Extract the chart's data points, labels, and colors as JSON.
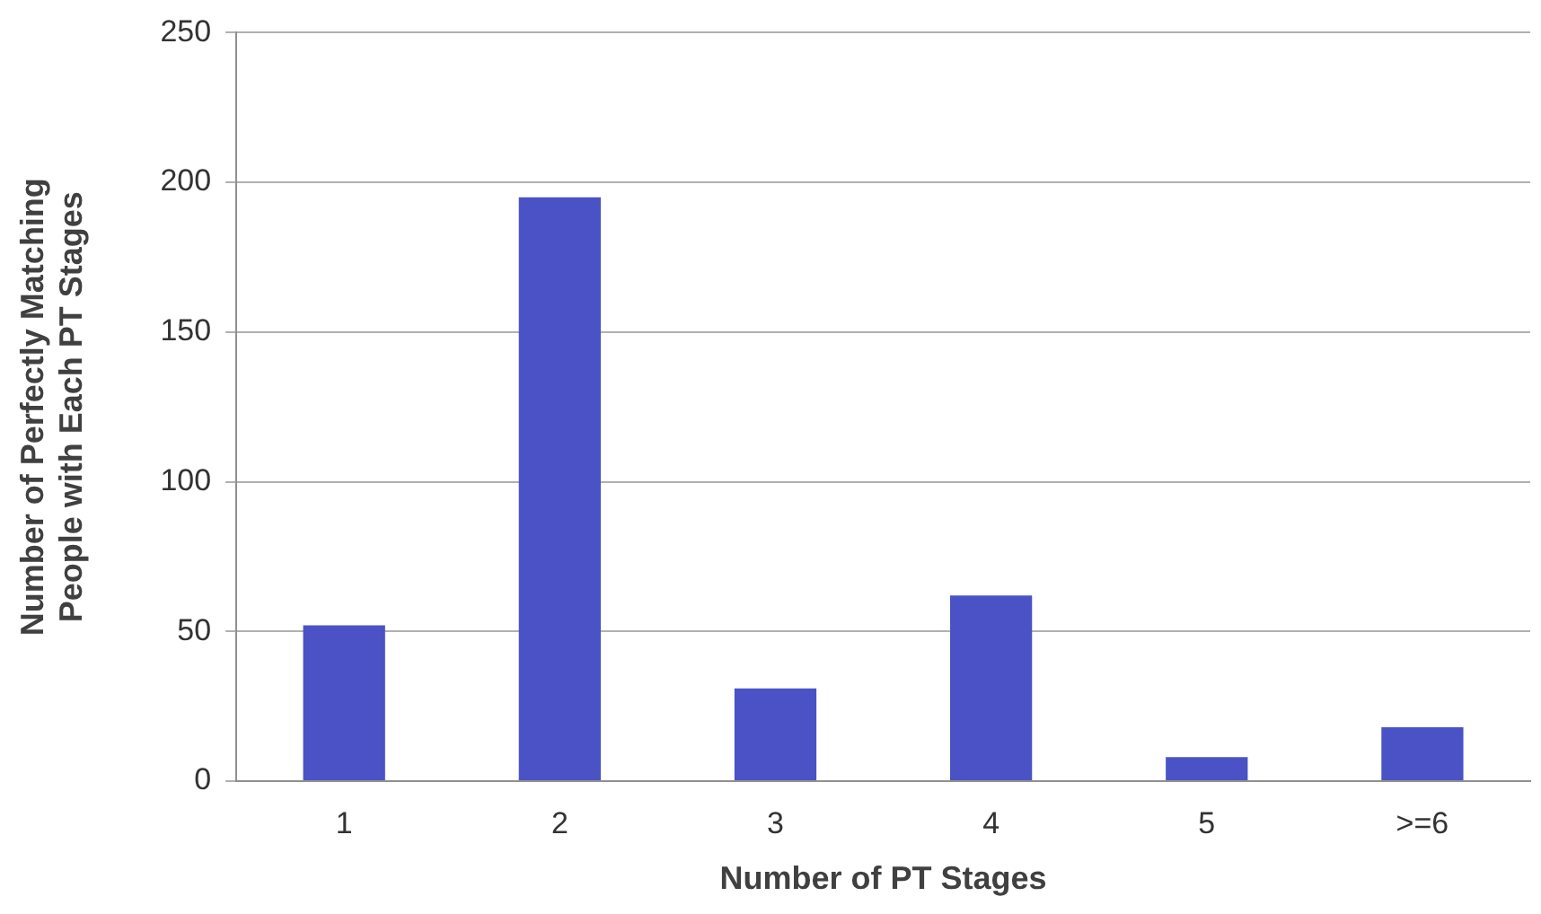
{
  "chart_data": {
    "type": "bar",
    "xlabel": "Number of PT Stages",
    "ylabel": "Number of Perfectly Matching\nPeople with Each PT Stages",
    "categories": [
      "1",
      "2",
      "3",
      "4",
      "5",
      ">=6"
    ],
    "values": [
      52,
      195,
      31,
      62,
      8,
      18
    ],
    "color": "#4a52c6",
    "ylim": [
      0,
      250
    ],
    "yticks": [
      0,
      50,
      100,
      150,
      200,
      250
    ],
    "grid": "y",
    "legend": false
  }
}
